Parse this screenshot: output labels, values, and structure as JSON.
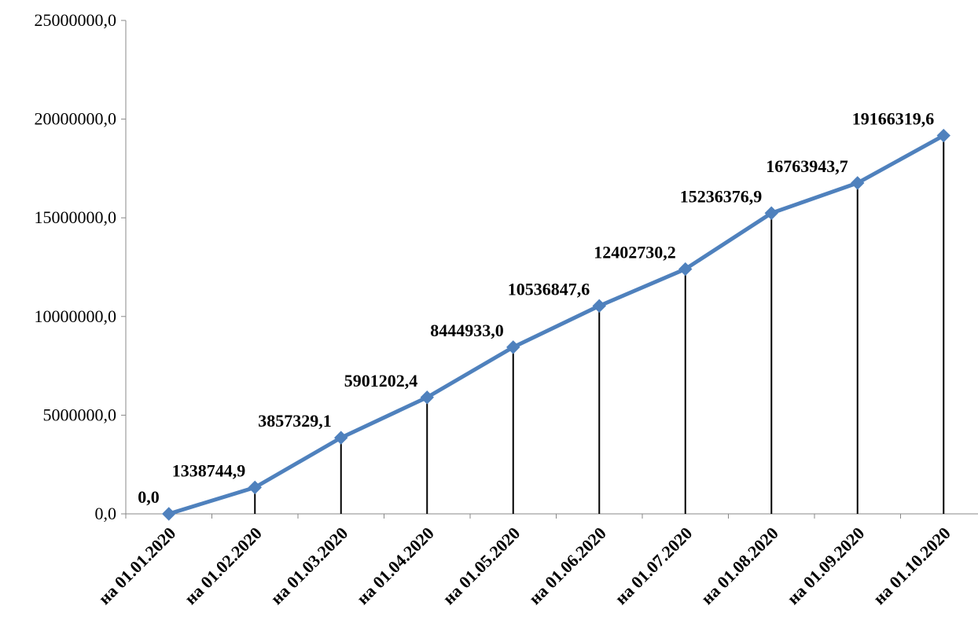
{
  "chart_data": {
    "type": "line",
    "title": "",
    "xlabel": "",
    "ylabel": "",
    "ylim": [
      0,
      25000000
    ],
    "y_ticks": [
      0,
      5000000,
      10000000,
      15000000,
      20000000,
      25000000
    ],
    "y_tick_labels": [
      "0,0",
      "5000000,0",
      "10000000,0",
      "15000000,0",
      "20000000,0",
      "25000000,0"
    ],
    "categories": [
      "на 01.01.2020",
      "на 01.02.2020",
      "на 01.03.2020",
      "на 01.04.2020",
      "на 01.05.2020",
      "на 01.06.2020",
      "на 01.07.2020",
      "на 01.08.2020",
      "на 01.09.2020",
      "на 01.10.2020"
    ],
    "series": [
      {
        "values": [
          0.0,
          1338744.9,
          3857329.1,
          5901202.4,
          8444933.0,
          10536847.6,
          12402730.2,
          15236376.9,
          16763943.7,
          19166319.6
        ],
        "data_labels": [
          "0,0",
          "1338744,9",
          "3857329,1",
          "5901202,4",
          "8444933,0",
          "10536847,6",
          "12402730,2",
          "15236376,9",
          "16763943,7",
          "19166319,6"
        ],
        "color": "#4f81bd",
        "marker": "diamond",
        "drop_lines": true
      }
    ],
    "grid": false,
    "legend": "none",
    "drop_line_color": "#000000"
  }
}
